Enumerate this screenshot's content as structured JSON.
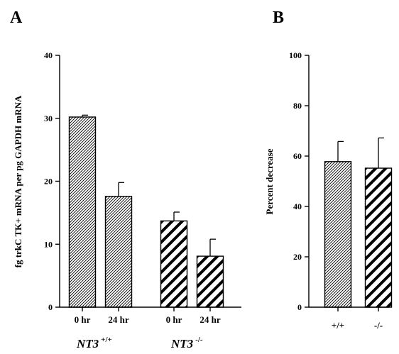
{
  "chart_data": [
    {
      "type": "bar",
      "panel_label": "A",
      "ylabel": "fg trkC TK+ mRNA per pg GAPDH mRNA",
      "ylim": [
        0,
        40
      ],
      "yticks": [
        0,
        10,
        20,
        30,
        40
      ],
      "categories": [
        "0 hr",
        "24 hr",
        "0 hr",
        "24 hr"
      ],
      "values": [
        30.2,
        17.6,
        13.7,
        8.1
      ],
      "errors": [
        0.3,
        2.2,
        1.4,
        2.7
      ],
      "fills": [
        "fine-hatch",
        "fine-hatch",
        "bold-hatch",
        "bold-hatch"
      ],
      "groups": [
        {
          "name": "NT3",
          "superscript": "+/+",
          "bars": [
            0,
            1
          ]
        },
        {
          "name": "NT3",
          "superscript": "-/-",
          "bars": [
            2,
            3
          ]
        }
      ]
    },
    {
      "type": "bar",
      "panel_label": "B",
      "ylabel": "Percent decrease",
      "ylim": [
        0,
        100
      ],
      "yticks": [
        0,
        20,
        40,
        60,
        80,
        100
      ],
      "categories": [
        "+/+",
        "-/-"
      ],
      "values": [
        57.8,
        55.2
      ],
      "errors": [
        8.0,
        12.0
      ],
      "fills": [
        "fine-hatch",
        "bold-hatch"
      ]
    }
  ]
}
